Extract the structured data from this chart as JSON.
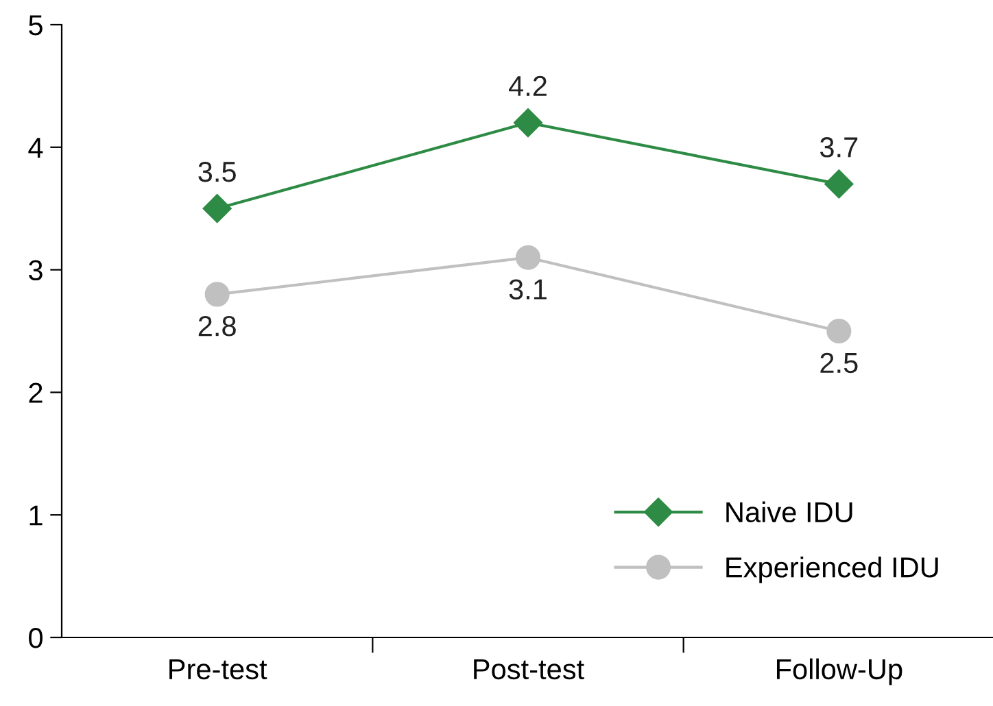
{
  "chart_data": {
    "type": "line",
    "categories": [
      "Pre-test",
      "Post-test",
      "Follow-Up"
    ],
    "series": [
      {
        "name": "Naive IDU",
        "color": "#2e8b45",
        "values": [
          3.5,
          4.2,
          3.7
        ],
        "marker": "diamond"
      },
      {
        "name": "Experienced IDU",
        "color": "#c0c0c0",
        "values": [
          2.8,
          3.1,
          2.5
        ],
        "marker": "circle"
      }
    ],
    "ylim": [
      0,
      5
    ],
    "yticks": [
      0,
      1,
      2,
      3,
      4,
      5
    ],
    "grid": false,
    "legend": "bottom right",
    "data_labels": true,
    "line_style": "solid"
  }
}
